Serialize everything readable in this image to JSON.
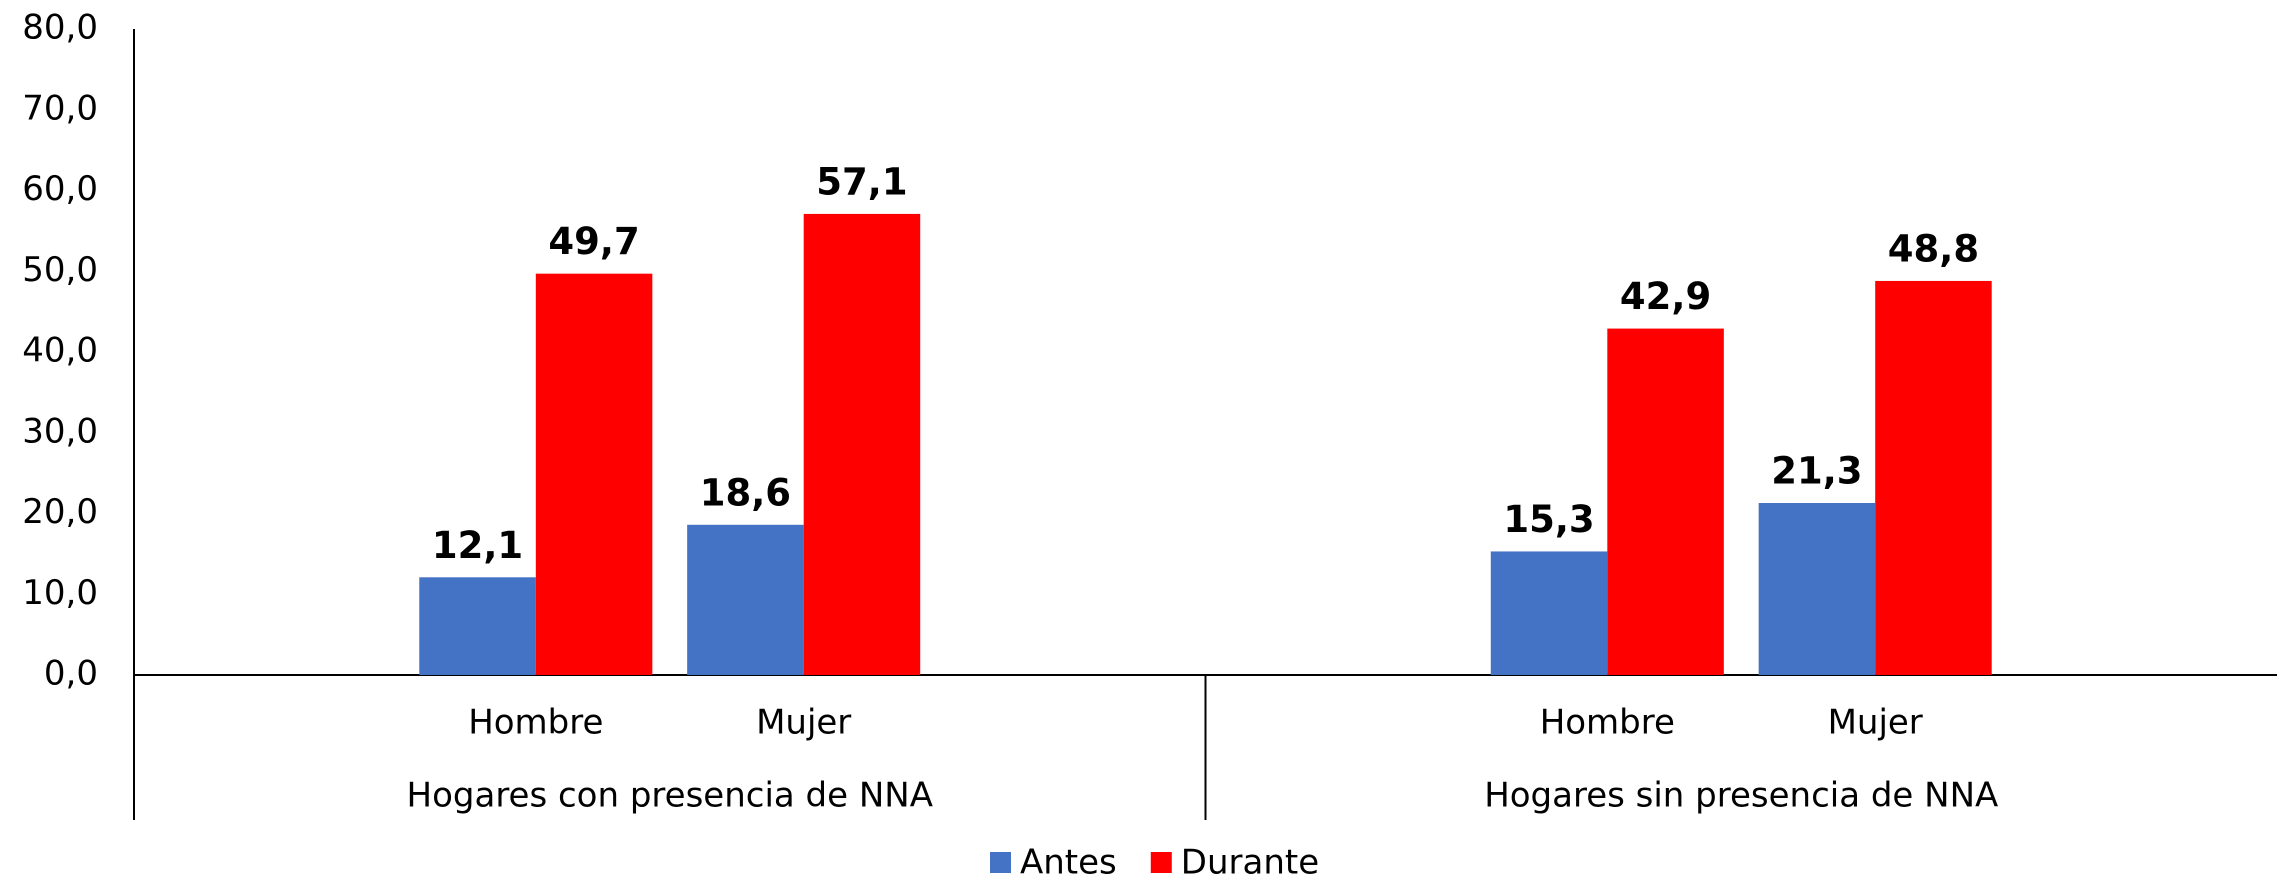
{
  "chart_data": {
    "type": "bar",
    "groups": [
      "Hogares con presencia de NNA",
      "Hogares sin presencia de NNA"
    ],
    "categories": [
      null,
      "Hombre",
      "Mujer",
      null,
      null,
      "Hombre",
      "Mujer",
      null
    ],
    "series": [
      {
        "name": "Antes",
        "color": "#4472c4",
        "values": [
          null,
          12.1,
          18.6,
          null,
          null,
          15.3,
          21.3,
          null
        ],
        "value_labels": [
          null,
          "12,1",
          "18,6",
          null,
          null,
          "15,3",
          "21,3",
          null
        ]
      },
      {
        "name": "Durante",
        "color": "#ff0000",
        "values": [
          null,
          49.7,
          57.1,
          null,
          null,
          42.9,
          48.8,
          null
        ],
        "value_labels": [
          null,
          "49,7",
          "57,1",
          null,
          null,
          "42,9",
          "48,8",
          null
        ]
      }
    ],
    "ylim": [
      0,
      80
    ],
    "yticks": [
      {
        "value": 0,
        "label": "0,0"
      },
      {
        "value": 10,
        "label": "10,0"
      },
      {
        "value": 20,
        "label": "20,0"
      },
      {
        "value": 30,
        "label": "30,0"
      },
      {
        "value": 40,
        "label": "40,0"
      },
      {
        "value": 50,
        "label": "50,0"
      },
      {
        "value": 60,
        "label": "60,0"
      },
      {
        "value": 70,
        "label": "70,0"
      },
      {
        "value": 80,
        "label": "80,0"
      }
    ],
    "legend": "bottom"
  }
}
